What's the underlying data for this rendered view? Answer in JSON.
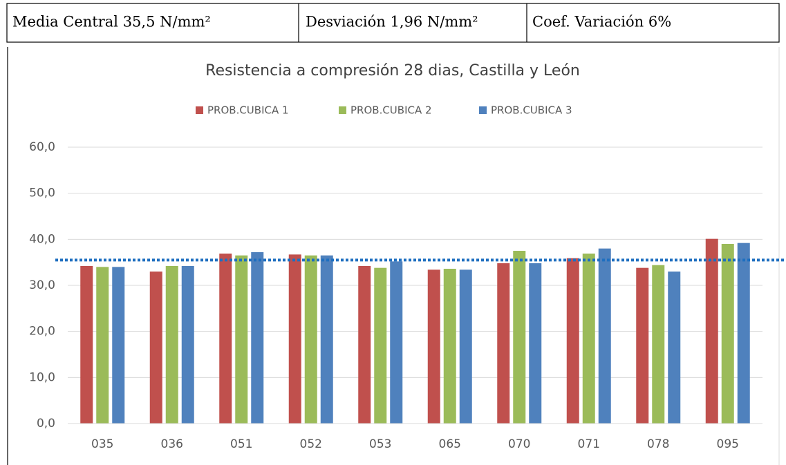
{
  "header": {
    "cells": [
      "Media Central 35,5 N/mm²",
      "Desviación 1,96 N/mm²",
      "Coef. Variación 6%"
    ]
  },
  "chart_data": {
    "type": "bar",
    "title": "Resistencia a compresión 28 dias, Castilla y León",
    "categories": [
      "035",
      "036",
      "051",
      "052",
      "053",
      "065",
      "070",
      "071",
      "078",
      "095"
    ],
    "series": [
      {
        "name": "PROB.CUBICA 1",
        "color": "#c0504d",
        "values": [
          34.2,
          33.0,
          36.9,
          36.7,
          34.2,
          33.4,
          34.8,
          35.9,
          33.8,
          40.1
        ]
      },
      {
        "name": "PROB.CUBICA 2",
        "color": "#9bbb59",
        "values": [
          34.0,
          34.2,
          36.5,
          36.5,
          33.8,
          33.6,
          37.5,
          36.9,
          34.4,
          39.0
        ]
      },
      {
        "name": "PROB.CUBICA 3",
        "color": "#4f81bd",
        "values": [
          34.0,
          34.2,
          37.2,
          36.5,
          35.2,
          33.4,
          34.8,
          38.0,
          33.0,
          39.2
        ]
      }
    ],
    "ylim": [
      0,
      60
    ],
    "yticks": [
      {
        "value": 0,
        "label": "0,0"
      },
      {
        "value": 10,
        "label": "10,0"
      },
      {
        "value": 20,
        "label": "20,0"
      },
      {
        "value": 30,
        "label": "30,0"
      },
      {
        "value": 40,
        "label": "40,0"
      },
      {
        "value": 50,
        "label": "50,0"
      },
      {
        "value": 60,
        "label": "60,0"
      }
    ],
    "grid": true,
    "legend": "top",
    "reference_line": {
      "value": 35.5,
      "color": "#1f6fc0"
    }
  }
}
